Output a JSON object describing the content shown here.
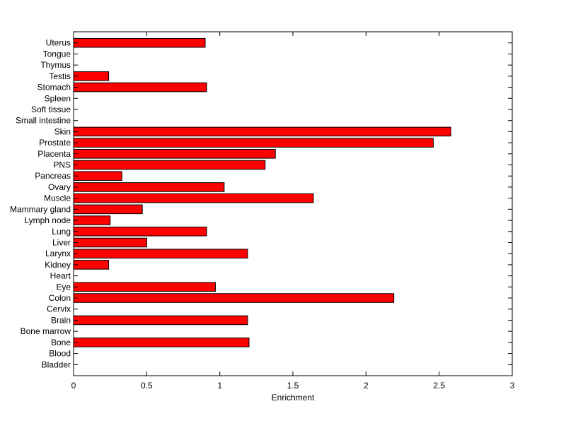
{
  "chart_data": {
    "type": "bar",
    "orientation": "horizontal",
    "xlabel": "Enrichment",
    "ylabel": "",
    "title": "",
    "xlim": [
      0,
      3
    ],
    "xticks": [
      "0",
      "0.5",
      "1",
      "1.5",
      "2",
      "2.5",
      "3"
    ],
    "grid": false,
    "bar_color": "#ff0000",
    "bar_edge_color": "#000000",
    "categories": [
      "Uterus",
      "Tongue",
      "Thymus",
      "Testis",
      "Stomach",
      "Spleen",
      "Soft tissue",
      "Small intestine",
      "Skin",
      "Prostate",
      "Placenta",
      "PNS",
      "Pancreas",
      "Ovary",
      "Muscle",
      "Mammary gland",
      "Lymph node",
      "Lung",
      "Liver",
      "Larynx",
      "Kidney",
      "Heart",
      "Eye",
      "Colon",
      "Cervix",
      "Brain",
      "Bone marrow",
      "Bone",
      "Blood",
      "Bladder"
    ],
    "values": [
      0.9,
      0,
      0,
      0.24,
      0.91,
      0,
      0,
      0,
      2.58,
      2.46,
      1.38,
      1.31,
      0.33,
      1.03,
      1.64,
      0.47,
      0.25,
      0.91,
      0.5,
      1.19,
      0.24,
      0,
      0.97,
      2.19,
      0,
      1.19,
      0,
      1.2,
      0,
      0
    ]
  }
}
